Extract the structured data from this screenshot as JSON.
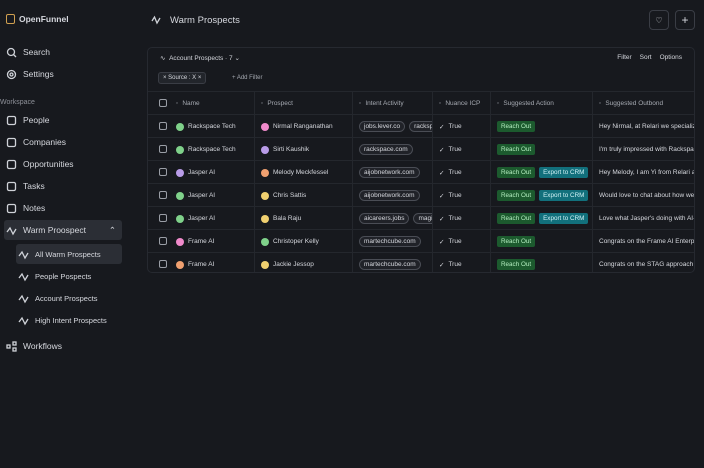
{
  "sidebar": {
    "workspace": "OpenFunnel",
    "search": "Search",
    "settings": "Settings",
    "section": "Workspace",
    "nav": [
      "People",
      "Companies",
      "Opportunities",
      "Tasks",
      "Notes"
    ],
    "group": "Warm Proospect",
    "subnav": [
      "All Warm Prospects",
      "People Pospects",
      "Account Prospects",
      "High Intent Prospects"
    ],
    "workflows": "Workflows"
  },
  "header": {
    "title": "Warm Prospects"
  },
  "toolbar": {
    "view": "Account Prospects · 7",
    "actions": [
      "Filter",
      "Sort",
      "Options"
    ],
    "filter_chip": "Source : X",
    "add_filter": "Add Filter"
  },
  "table": {
    "columns": [
      "Name",
      "Prospect",
      "Intent Activity",
      "Nuance ICP",
      "Suggested Action",
      "Suggested Outbond"
    ],
    "rows": [
      [
        "Rackspace Tech",
        "Nirmal Ranganathan",
        [
          "jobs.lever.co",
          "rackspace.com"
        ],
        "True",
        [
          "Reach Out"
        ],
        "Hey Nirmal, at Relari we specialize"
      ],
      [
        "Rackspace Tech",
        "Sirti Kaushik",
        [
          "rackspace.com"
        ],
        "True",
        [
          "Reach Out"
        ],
        "I'm truly impressed with Rackspace"
      ],
      [
        "Jasper AI",
        "Melody Meckfessel",
        [
          "aijobnetwork.com"
        ],
        "True",
        [
          "Reach Out",
          "Export to CRM"
        ],
        "Hey Melody, I am Yi from Relari at"
      ],
      [
        "Jasper AI",
        "Chris Sattis",
        [
          "aijobnetwork.com"
        ],
        "True",
        [
          "Reach Out",
          "Export to CRM"
        ],
        "Would love to chat about how we c"
      ],
      [
        "Jasper AI",
        "Bala Raju",
        [
          "aicareers.jobs",
          "magicjobs"
        ],
        "True",
        [
          "Reach Out",
          "Export to CRM"
        ],
        "Love what Jasper's doing with AI-"
      ],
      [
        "Frame AI",
        "Christoper Kelly",
        [
          "martechcube.com"
        ],
        "True",
        [
          "Reach Out"
        ],
        "Congrats on the Frame AI Enterpri"
      ],
      [
        "Frame AI",
        "Jackie Jessop",
        [
          "martechcube.com"
        ],
        "True",
        [
          "Reach Out"
        ],
        "Congrats on the STAG approach fr"
      ]
    ]
  }
}
